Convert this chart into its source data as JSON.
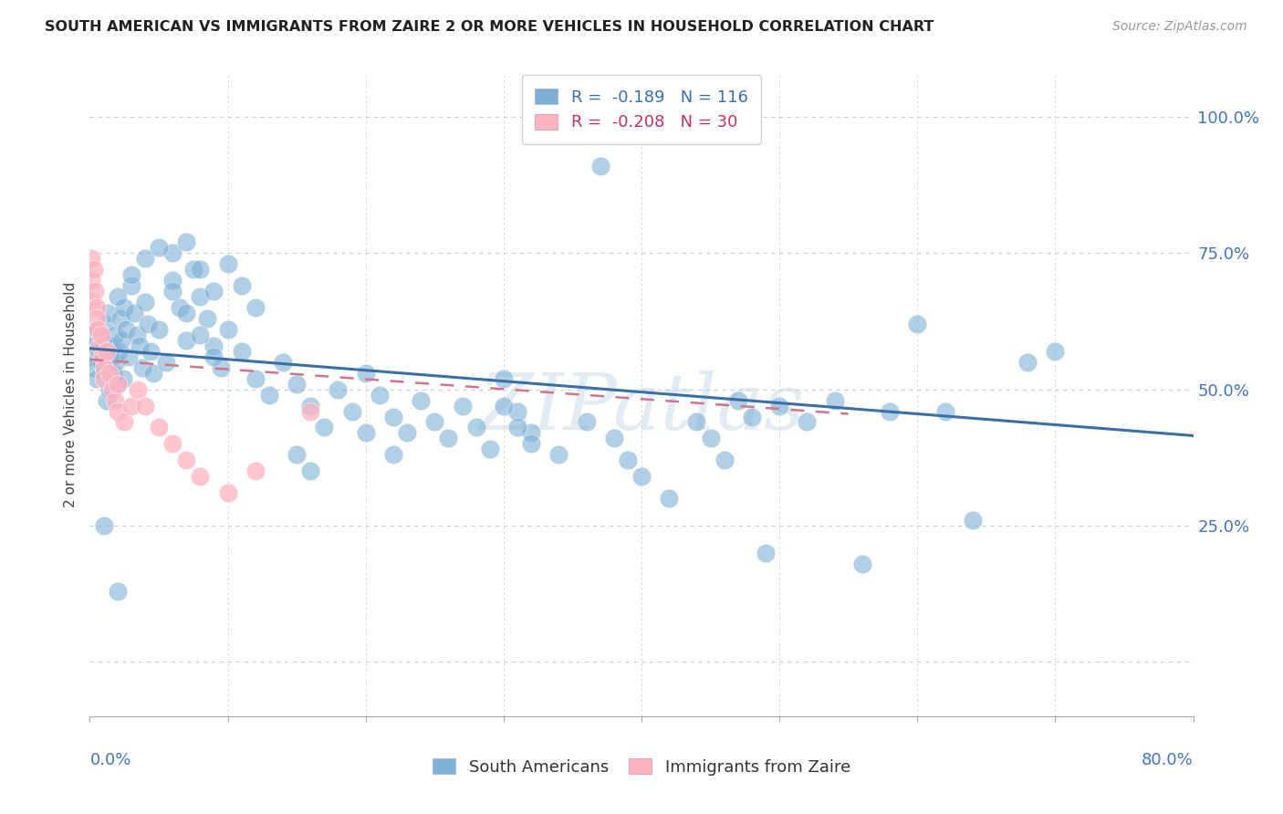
{
  "title": "SOUTH AMERICAN VS IMMIGRANTS FROM ZAIRE 2 OR MORE VEHICLES IN HOUSEHOLD CORRELATION CHART",
  "source": "Source: ZipAtlas.com",
  "ylabel": "2 or more Vehicles in Household",
  "ytick_labels": [
    "",
    "25.0%",
    "50.0%",
    "75.0%",
    "100.0%"
  ],
  "ytick_values": [
    0.0,
    0.25,
    0.5,
    0.75,
    1.0
  ],
  "xmin": 0.0,
  "xmax": 0.8,
  "ymin": -0.1,
  "ymax": 1.08,
  "color_blue": "#7EB0D5",
  "color_pink": "#FFB3C1",
  "trendline_blue": [
    [
      0.0,
      0.575
    ],
    [
      0.8,
      0.415
    ]
  ],
  "trendline_pink": [
    [
      0.0,
      0.555
    ],
    [
      0.55,
      0.455
    ]
  ],
  "watermark": "ZIPatlas",
  "background_color": "#ffffff",
  "grid_color": "#cccccc",
  "sa_points": [
    [
      0.001,
      0.56
    ],
    [
      0.002,
      0.6
    ],
    [
      0.003,
      0.54
    ],
    [
      0.004,
      0.58
    ],
    [
      0.005,
      0.52
    ],
    [
      0.006,
      0.61
    ],
    [
      0.007,
      0.57
    ],
    [
      0.008,
      0.55
    ],
    [
      0.009,
      0.59
    ],
    [
      0.01,
      0.53
    ],
    [
      0.011,
      0.62
    ],
    [
      0.012,
      0.48
    ],
    [
      0.013,
      0.64
    ],
    [
      0.014,
      0.5
    ],
    [
      0.015,
      0.58
    ],
    [
      0.016,
      0.56
    ],
    [
      0.017,
      0.53
    ],
    [
      0.018,
      0.6
    ],
    [
      0.019,
      0.55
    ],
    [
      0.02,
      0.51
    ],
    [
      0.021,
      0.57
    ],
    [
      0.022,
      0.63
    ],
    [
      0.023,
      0.59
    ],
    [
      0.024,
      0.52
    ],
    [
      0.025,
      0.65
    ],
    [
      0.026,
      0.61
    ],
    [
      0.028,
      0.56
    ],
    [
      0.03,
      0.69
    ],
    [
      0.032,
      0.64
    ],
    [
      0.034,
      0.6
    ],
    [
      0.036,
      0.58
    ],
    [
      0.038,
      0.54
    ],
    [
      0.04,
      0.66
    ],
    [
      0.042,
      0.62
    ],
    [
      0.044,
      0.57
    ],
    [
      0.046,
      0.53
    ],
    [
      0.05,
      0.61
    ],
    [
      0.055,
      0.55
    ],
    [
      0.06,
      0.7
    ],
    [
      0.065,
      0.65
    ],
    [
      0.07,
      0.59
    ],
    [
      0.075,
      0.72
    ],
    [
      0.08,
      0.67
    ],
    [
      0.085,
      0.63
    ],
    [
      0.09,
      0.58
    ],
    [
      0.095,
      0.54
    ],
    [
      0.1,
      0.61
    ],
    [
      0.11,
      0.57
    ],
    [
      0.12,
      0.52
    ],
    [
      0.13,
      0.49
    ],
    [
      0.14,
      0.55
    ],
    [
      0.15,
      0.51
    ],
    [
      0.16,
      0.47
    ],
    [
      0.17,
      0.43
    ],
    [
      0.18,
      0.5
    ],
    [
      0.19,
      0.46
    ],
    [
      0.2,
      0.53
    ],
    [
      0.21,
      0.49
    ],
    [
      0.22,
      0.45
    ],
    [
      0.23,
      0.42
    ],
    [
      0.24,
      0.48
    ],
    [
      0.25,
      0.44
    ],
    [
      0.26,
      0.41
    ],
    [
      0.27,
      0.47
    ],
    [
      0.28,
      0.43
    ],
    [
      0.29,
      0.39
    ],
    [
      0.3,
      0.52
    ],
    [
      0.31,
      0.46
    ],
    [
      0.32,
      0.42
    ],
    [
      0.34,
      0.38
    ],
    [
      0.36,
      0.44
    ],
    [
      0.37,
      0.91
    ],
    [
      0.38,
      0.41
    ],
    [
      0.39,
      0.37
    ],
    [
      0.4,
      0.34
    ],
    [
      0.42,
      0.3
    ],
    [
      0.44,
      0.44
    ],
    [
      0.45,
      0.41
    ],
    [
      0.46,
      0.37
    ],
    [
      0.47,
      0.48
    ],
    [
      0.48,
      0.45
    ],
    [
      0.49,
      0.2
    ],
    [
      0.5,
      0.47
    ],
    [
      0.52,
      0.44
    ],
    [
      0.54,
      0.48
    ],
    [
      0.56,
      0.18
    ],
    [
      0.58,
      0.46
    ],
    [
      0.6,
      0.62
    ],
    [
      0.62,
      0.46
    ],
    [
      0.64,
      0.26
    ],
    [
      0.06,
      0.75
    ],
    [
      0.07,
      0.77
    ],
    [
      0.08,
      0.72
    ],
    [
      0.09,
      0.68
    ],
    [
      0.1,
      0.73
    ],
    [
      0.11,
      0.69
    ],
    [
      0.12,
      0.65
    ],
    [
      0.02,
      0.67
    ],
    [
      0.03,
      0.71
    ],
    [
      0.04,
      0.74
    ],
    [
      0.05,
      0.76
    ],
    [
      0.06,
      0.68
    ],
    [
      0.07,
      0.64
    ],
    [
      0.08,
      0.6
    ],
    [
      0.09,
      0.56
    ],
    [
      0.15,
      0.38
    ],
    [
      0.16,
      0.35
    ],
    [
      0.3,
      0.47
    ],
    [
      0.31,
      0.43
    ],
    [
      0.32,
      0.4
    ],
    [
      0.2,
      0.42
    ],
    [
      0.22,
      0.38
    ],
    [
      0.01,
      0.25
    ],
    [
      0.02,
      0.13
    ],
    [
      0.68,
      0.55
    ],
    [
      0.7,
      0.57
    ]
  ],
  "iz_points": [
    [
      0.001,
      0.7
    ],
    [
      0.001,
      0.74
    ],
    [
      0.002,
      0.66
    ],
    [
      0.003,
      0.72
    ],
    [
      0.004,
      0.68
    ],
    [
      0.005,
      0.65
    ],
    [
      0.005,
      0.63
    ],
    [
      0.006,
      0.61
    ],
    [
      0.007,
      0.58
    ],
    [
      0.008,
      0.6
    ],
    [
      0.009,
      0.56
    ],
    [
      0.01,
      0.54
    ],
    [
      0.01,
      0.52
    ],
    [
      0.012,
      0.57
    ],
    [
      0.014,
      0.53
    ],
    [
      0.016,
      0.5
    ],
    [
      0.018,
      0.48
    ],
    [
      0.02,
      0.51
    ],
    [
      0.02,
      0.46
    ],
    [
      0.025,
      0.44
    ],
    [
      0.03,
      0.47
    ],
    [
      0.035,
      0.5
    ],
    [
      0.04,
      0.47
    ],
    [
      0.05,
      0.43
    ],
    [
      0.06,
      0.4
    ],
    [
      0.07,
      0.37
    ],
    [
      0.08,
      0.34
    ],
    [
      0.1,
      0.31
    ],
    [
      0.12,
      0.35
    ],
    [
      0.16,
      0.46
    ]
  ]
}
